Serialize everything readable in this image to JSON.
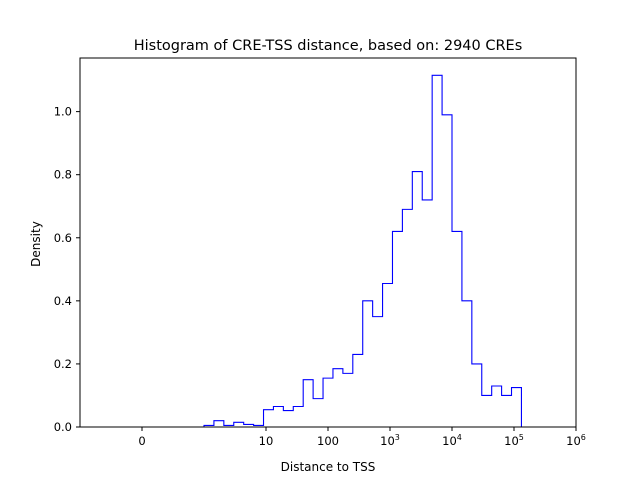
{
  "chart_data": {
    "type": "histogram",
    "title": "Histogram of CRE-TSS distance, based on: 2940 CREs",
    "xlabel": "Distance to TSS",
    "ylabel": "Density",
    "x_scale": "symlog",
    "xlim": [
      -1,
      1000000
    ],
    "ylim": [
      0,
      1.17
    ],
    "line_color": "#0000ff",
    "grid": false,
    "legend": false,
    "x_ticks": [
      {
        "value": 0,
        "label": "0"
      },
      {
        "value": 10,
        "label": "10"
      },
      {
        "value": 100,
        "label": "100"
      },
      {
        "value": 1000,
        "base": "10",
        "exp": "3"
      },
      {
        "value": 10000,
        "base": "10",
        "exp": "4"
      },
      {
        "value": 100000,
        "base": "10",
        "exp": "5"
      },
      {
        "value": 1000000,
        "base": "10",
        "exp": "6"
      }
    ],
    "y_ticks": [
      {
        "value": 0.0,
        "label": "0.0"
      },
      {
        "value": 0.2,
        "label": "0.2"
      },
      {
        "value": 0.4,
        "label": "0.4"
      },
      {
        "value": 0.6,
        "label": "0.6"
      },
      {
        "value": 0.8,
        "label": "0.8"
      },
      {
        "value": 1.0,
        "label": "1.0"
      }
    ],
    "bin_edges_log10": [
      0,
      0.16,
      0.32,
      0.48,
      0.64,
      0.8,
      0.96,
      1.12,
      1.28,
      1.44,
      1.6,
      1.76,
      1.92,
      2.08,
      2.24,
      2.4,
      2.56,
      2.72,
      2.88,
      3.04,
      3.2,
      3.36,
      3.52,
      3.68,
      3.84,
      4.0,
      4.16,
      4.32,
      4.48,
      4.64,
      4.8,
      4.96,
      5.12
    ],
    "densities": [
      0.005,
      0.02,
      0.005,
      0.015,
      0.008,
      0.005,
      0.055,
      0.065,
      0.052,
      0.065,
      0.15,
      0.09,
      0.155,
      0.185,
      0.17,
      0.23,
      0.4,
      0.35,
      0.455,
      0.62,
      0.69,
      0.81,
      0.72,
      1.115,
      0.99,
      0.62,
      0.4,
      0.2,
      0.1,
      0.13,
      0.1,
      0.125
    ]
  }
}
